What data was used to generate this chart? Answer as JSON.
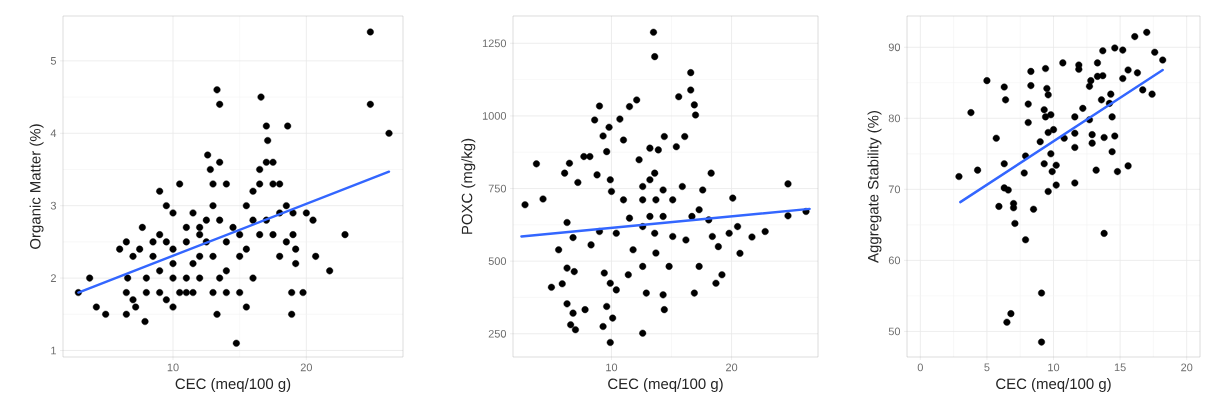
{
  "chart_data": [
    {
      "type": "scatter",
      "xlabel": "CEC (meq/100 g)",
      "ylabel": "Organic Matter (%)",
      "xlim": [
        1.75,
        27.25
      ],
      "ylim": [
        0.91,
        5.62
      ],
      "xticks": [
        10,
        20
      ],
      "yticks": [
        1,
        2,
        3,
        4,
        5
      ],
      "grid": true,
      "marker": "circle",
      "series": [
        {
          "color": "#000000",
          "x": [
            2.9,
            3.75,
            4.25,
            4.95,
            6.5,
            7.2,
            7.9,
            7.7,
            6,
            6.5,
            7,
            6.6,
            6.5,
            7,
            8,
            9,
            9.5,
            10,
            10.5,
            11,
            11.5,
            8,
            9,
            10,
            11,
            12,
            8.5,
            9.5,
            10,
            11,
            12,
            9,
            9.5,
            10,
            10.5,
            11.5,
            12,
            12.5,
            13,
            13.5,
            12.6,
            12.8,
            13,
            13.3,
            13.5,
            13.5,
            14,
            14,
            14.5,
            15,
            15,
            13,
            13.3,
            14,
            15,
            15.5,
            14.75,
            16,
            16,
            16.5,
            16.5,
            17,
            16.6,
            17,
            17.1,
            17.5,
            17.5,
            17,
            17.5,
            18,
            18,
            18.5,
            18.5,
            18,
            18.6,
            19,
            19,
            19.2,
            19.2,
            18.9,
            18.9,
            19.75,
            20,
            20.5,
            20.7,
            21.75,
            22.9,
            24.8,
            24.8,
            26.2,
            15.5,
            16,
            12,
            13,
            14,
            11,
            12.5,
            15.5,
            16.5,
            10,
            9,
            8.5,
            7.5,
            11.5,
            13.5
          ],
          "values": [
            1.8,
            2.0,
            1.6,
            1.5,
            1.5,
            1.6,
            1.4,
            2.7,
            2.4,
            2.5,
            2.3,
            2.0,
            1.8,
            1.7,
            1.8,
            1.8,
            1.7,
            1.6,
            1.8,
            1.8,
            1.8,
            2.0,
            2.1,
            2.0,
            2.0,
            2.0,
            2.3,
            2.5,
            2.2,
            2.5,
            2.6,
            3.2,
            3.0,
            2.9,
            3.3,
            2.9,
            2.7,
            2.8,
            3.0,
            3.6,
            3.7,
            3.5,
            3.3,
            4.6,
            4.4,
            2.8,
            3.3,
            2.5,
            2.7,
            2.6,
            2.3,
            1.8,
            1.5,
            1.8,
            1.8,
            1.6,
            1.1,
            2.0,
            2.8,
            3.3,
            3.5,
            3.6,
            4.5,
            4.1,
            3.9,
            3.6,
            3.3,
            2.8,
            2.6,
            2.9,
            3.3,
            3.0,
            2.5,
            2.3,
            4.1,
            2.9,
            2.6,
            2.4,
            2.2,
            1.8,
            1.5,
            1.8,
            2.9,
            2.8,
            2.3,
            2.1,
            2.6,
            5.4,
            4.4,
            4.0,
            3.0,
            3.2,
            2.3,
            2.3,
            2.1,
            2.7,
            2.5,
            2.4,
            2.6,
            2.4,
            2.6,
            2.5,
            2.4,
            2.2,
            2.0
          ]
        },
        {
          "type": "line",
          "color": "#3366ff",
          "marker": "none",
          "x": [
            2.9,
            26.2
          ],
          "values": [
            1.8,
            3.47
          ]
        }
      ]
    },
    {
      "type": "scatter",
      "xlabel": "CEC (meq/100 g)",
      "ylabel": "POXC (mg/kg)",
      "xlim": [
        1.8,
        27.2
      ],
      "ylim": [
        170,
        1344
      ],
      "xticks": [
        10,
        20
      ],
      "yticks": [
        250,
        500,
        750,
        1000,
        1250
      ],
      "grid": true,
      "marker": "circle",
      "series": [
        {
          "color": "#000000",
          "x": [
            2.8,
            3.75,
            4.3,
            5.0,
            5.9,
            5.6,
            6.1,
            6.5,
            6.3,
            6.3,
            6.3,
            6.6,
            7.0,
            6.8,
            6.8,
            6.9,
            7.2,
            7.7,
            7.8,
            8.2,
            8.3,
            8.6,
            9.0,
            8.8,
            9.0,
            9.3,
            9.8,
            9.6,
            9.9,
            10.0,
            9.3,
            9.9,
            10.1,
            9.4,
            9.9,
            10.4,
            9.6,
            10.7,
            11.0,
            11.5,
            12.1,
            11.5,
            11.4,
            11.8,
            12.3,
            12.6,
            12.6,
            12.9,
            13.2,
            13.5,
            13.6,
            13.7,
            13.9,
            14.4,
            14.4,
            14.3,
            14.3,
            13.6,
            13.6,
            14.8,
            15.1,
            15.4,
            15.6,
            15.9,
            16.2,
            16.6,
            16.6,
            16.9,
            17.0,
            16.9,
            16.1,
            17.3,
            17.6,
            17.3,
            18.3,
            18.4,
            18.7,
            19.2,
            18.9,
            19.8,
            20.1,
            20.5,
            20.7,
            21.7,
            22.8,
            24.7,
            24.7,
            26.2,
            12.6,
            13.2,
            14.3,
            12.6,
            13.7,
            12.6,
            11.0,
            10.4,
            15.1,
            16.7,
            18.1,
            13.2
          ],
          "values": [
            694,
            835,
            714,
            410,
            422,
            539,
            803,
            837,
            633,
            476,
            353,
            281,
            264,
            321,
            581,
            464,
            771,
            860,
            333,
            860,
            556,
            986,
            1034,
            797,
            602,
            931,
            961,
            877,
            780,
            740,
            275,
            220,
            304,
            459,
            424,
            401,
            344,
            989,
            917,
            1032,
            1055,
            648,
            453,
            539,
            849,
            252,
            619,
            390,
            889,
            1288,
            1204,
            711,
            883,
            929,
            333,
            384,
            745,
            596,
            803,
            482,
            585,
            894,
            1066,
            757,
            573,
            1089,
            1149,
            1038,
            1003,
            390,
            929,
            677,
            745,
            482,
            803,
            585,
            424,
            453,
            550,
            596,
            717,
            619,
            527,
            583,
            602,
            766,
            656,
            671,
            711,
            654,
            654,
            757,
            528,
            482,
            711,
            596,
            711,
            654,
            642,
            780
          ]
        },
        {
          "type": "line",
          "color": "#3366ff",
          "marker": "none",
          "x": [
            2.5,
            26.5
          ],
          "values": [
            585,
            680
          ]
        }
      ]
    },
    {
      "type": "scatter",
      "xlabel": "CEC (meq/100 g)",
      "ylabel": "Aggregate Stability (%)",
      "xlim": [
        -1,
        21
      ],
      "ylim": [
        46.4,
        94.4
      ],
      "xticks": [
        0,
        5,
        10,
        15,
        20
      ],
      "yticks": [
        50,
        60,
        70,
        80,
        90
      ],
      "grid": true,
      "marker": "circle",
      "series": [
        {
          "color": "#000000",
          "x": [
            2.9,
            3.8,
            4.3,
            5.0,
            5.7,
            6.3,
            6.4,
            6.3,
            6.3,
            6.6,
            5.9,
            7.0,
            7.0,
            7.1,
            7.9,
            7.8,
            7.9,
            8.1,
            8.1,
            8.3,
            8.3,
            8.5,
            9.0,
            9.1,
            9.1,
            6.5,
            6.8,
            9.3,
            9.4,
            9.5,
            9.6,
            9.3,
            9.4,
            9.6,
            9.6,
            9.8,
            9.8,
            10.0,
            9.9,
            10.2,
            10.2,
            10.7,
            10.8,
            11.6,
            11.6,
            11.6,
            11.6,
            11.9,
            11.9,
            12.2,
            12.7,
            12.7,
            12.8,
            12.9,
            12.9,
            13.2,
            13.3,
            13.3,
            13.6,
            13.7,
            13.7,
            13.8,
            13.8,
            14.2,
            14.3,
            14.4,
            14.4,
            14.6,
            14.6,
            14.8,
            15.2,
            15.2,
            15.6,
            15.6,
            16.1,
            16.3,
            16.7,
            17.0,
            17.4,
            17.6,
            18.2
          ],
          "values": [
            71.8,
            80.8,
            72.7,
            85.3,
            77.2,
            84.4,
            82.6,
            73.6,
            70.2,
            69.9,
            67.6,
            67.4,
            68.0,
            65.2,
            62.9,
            72.3,
            74.7,
            79.4,
            82.0,
            86.6,
            84.6,
            67.2,
            76.7,
            55.4,
            48.5,
            51.3,
            52.5,
            73.6,
            87.0,
            84.2,
            83.3,
            81.2,
            80.2,
            78.0,
            69.7,
            80.5,
            75.0,
            78.4,
            72.5,
            73.4,
            70.6,
            87.8,
            77.2,
            80.2,
            77.9,
            75.9,
            70.9,
            87.5,
            86.9,
            81.4,
            79.8,
            84.5,
            85.3,
            77.7,
            76.5,
            72.7,
            87.8,
            85.9,
            82.6,
            86.0,
            89.5,
            63.8,
            77.3,
            82.1,
            83.4,
            80.2,
            75.3,
            89.9,
            77.5,
            72.5,
            89.6,
            85.6,
            86.8,
            73.3,
            91.5,
            86.4,
            84.0,
            92.1,
            83.4,
            89.3,
            88.2
          ]
        },
        {
          "type": "line",
          "color": "#3366ff",
          "marker": "none",
          "x": [
            3.0,
            18.2
          ],
          "values": [
            68.2,
            86.8
          ]
        }
      ]
    }
  ]
}
